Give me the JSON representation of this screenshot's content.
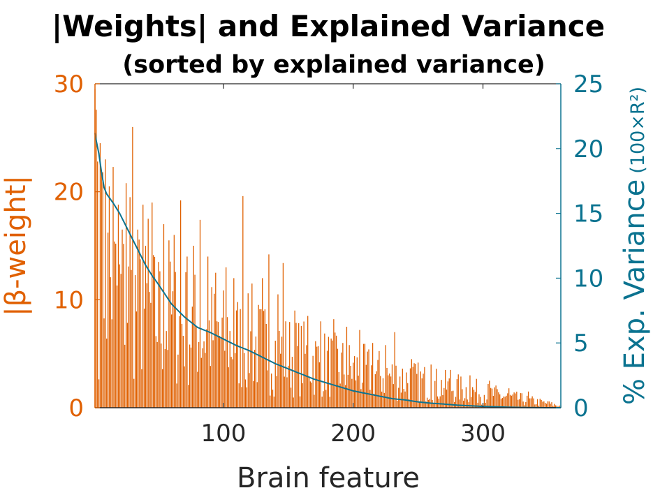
{
  "chart_data": {
    "type": "bar+line",
    "title": "|Weights| and Explained Variance",
    "subtitle": "(sorted by explained variance)",
    "xlabel": "Brain feature",
    "ylabel_left": "|β-weight|",
    "ylabel_right_main": "% Exp. Variance",
    "ylabel_right_unit": "(100×R²)",
    "xlim": [
      1,
      360
    ],
    "xticks": [
      100,
      200,
      300
    ],
    "ylim_left": [
      0,
      30
    ],
    "yticks_left": [
      0,
      10,
      20,
      30
    ],
    "ylim_right": [
      0,
      25
    ],
    "yticks_right": [
      0,
      5,
      10,
      15,
      20,
      25
    ],
    "grid": false,
    "colors": {
      "bars": "#e06000",
      "line": "#0b7390",
      "ticks": "#262626"
    },
    "feature_count": 360,
    "bar_envelope": {
      "x": [
        1,
        10,
        20,
        30,
        50,
        75,
        100,
        125,
        150,
        175,
        200,
        225,
        250,
        275,
        300,
        325,
        350,
        360
      ],
      "y": [
        18.5,
        15.5,
        13.2,
        12.4,
        10.6,
        9.6,
        8.2,
        7.4,
        6.3,
        5.4,
        4.5,
        3.8,
        3.1,
        2.4,
        1.8,
        1.1,
        0.5,
        0.2
      ]
    },
    "bar_peaks": [
      {
        "x": 1,
        "y": 29.5
      },
      {
        "x": 2,
        "y": 27.6
      },
      {
        "x": 3,
        "y": 22.8
      },
      {
        "x": 5,
        "y": 24.5
      },
      {
        "x": 7,
        "y": 21.8
      },
      {
        "x": 9,
        "y": 23.0
      },
      {
        "x": 12,
        "y": 20.5
      },
      {
        "x": 15,
        "y": 22.3
      },
      {
        "x": 19,
        "y": 18.8
      },
      {
        "x": 22,
        "y": 16.5
      },
      {
        "x": 25,
        "y": 20.8
      },
      {
        "x": 28,
        "y": 19.5
      },
      {
        "x": 30,
        "y": 26.0
      },
      {
        "x": 34,
        "y": 16.5
      },
      {
        "x": 38,
        "y": 18.8
      },
      {
        "x": 42,
        "y": 17.5
      },
      {
        "x": 45,
        "y": 19.0
      },
      {
        "x": 50,
        "y": 13.5
      },
      {
        "x": 54,
        "y": 17.0
      },
      {
        "x": 58,
        "y": 15.5
      },
      {
        "x": 62,
        "y": 16.0
      },
      {
        "x": 67,
        "y": 19.2
      },
      {
        "x": 72,
        "y": 14.0
      },
      {
        "x": 77,
        "y": 15.0
      },
      {
        "x": 82,
        "y": 17.4
      },
      {
        "x": 88,
        "y": 14.0
      },
      {
        "x": 94,
        "y": 12.5
      },
      {
        "x": 102,
        "y": 13.0
      },
      {
        "x": 108,
        "y": 12.0
      },
      {
        "x": 115,
        "y": 19.6
      },
      {
        "x": 122,
        "y": 11.5
      },
      {
        "x": 130,
        "y": 12.0
      },
      {
        "x": 135,
        "y": 14.2
      },
      {
        "x": 142,
        "y": 10.5
      },
      {
        "x": 146,
        "y": 13.4
      },
      {
        "x": 155,
        "y": 9.0
      },
      {
        "x": 165,
        "y": 8.5
      },
      {
        "x": 175,
        "y": 8.0
      },
      {
        "x": 185,
        "y": 8.2
      },
      {
        "x": 195,
        "y": 7.5
      },
      {
        "x": 205,
        "y": 7.2
      },
      {
        "x": 215,
        "y": 6.0
      },
      {
        "x": 225,
        "y": 5.8
      },
      {
        "x": 232,
        "y": 7.0
      },
      {
        "x": 245,
        "y": 4.5
      },
      {
        "x": 260,
        "y": 4.0
      },
      {
        "x": 275,
        "y": 3.5
      },
      {
        "x": 290,
        "y": 3.0
      },
      {
        "x": 305,
        "y": 2.5
      },
      {
        "x": 320,
        "y": 1.8
      },
      {
        "x": 335,
        "y": 1.5
      },
      {
        "x": 350,
        "y": 0.6
      },
      {
        "x": 360,
        "y": 0.2
      }
    ],
    "variance_line": {
      "x": [
        1,
        2,
        4,
        6,
        8,
        10,
        15,
        20,
        25,
        30,
        35,
        40,
        45,
        50,
        60,
        70,
        80,
        90,
        100,
        110,
        120,
        130,
        140,
        150,
        160,
        170,
        180,
        190,
        200,
        210,
        220,
        230,
        240,
        250,
        260,
        270,
        280,
        290,
        300,
        310,
        320,
        330,
        340,
        350,
        360
      ],
      "y": [
        21.2,
        20.6,
        19.6,
        18.2,
        17.0,
        16.5,
        15.8,
        15.0,
        14.0,
        13.0,
        12.0,
        11.0,
        10.2,
        9.5,
        8.0,
        7.0,
        6.2,
        5.8,
        5.3,
        4.8,
        4.4,
        3.9,
        3.4,
        3.0,
        2.6,
        2.2,
        1.9,
        1.6,
        1.3,
        1.1,
        0.9,
        0.7,
        0.6,
        0.45,
        0.35,
        0.28,
        0.2,
        0.15,
        0.1,
        0.07,
        0.04,
        0.02,
        0.01,
        0.0,
        0.0
      ]
    }
  }
}
